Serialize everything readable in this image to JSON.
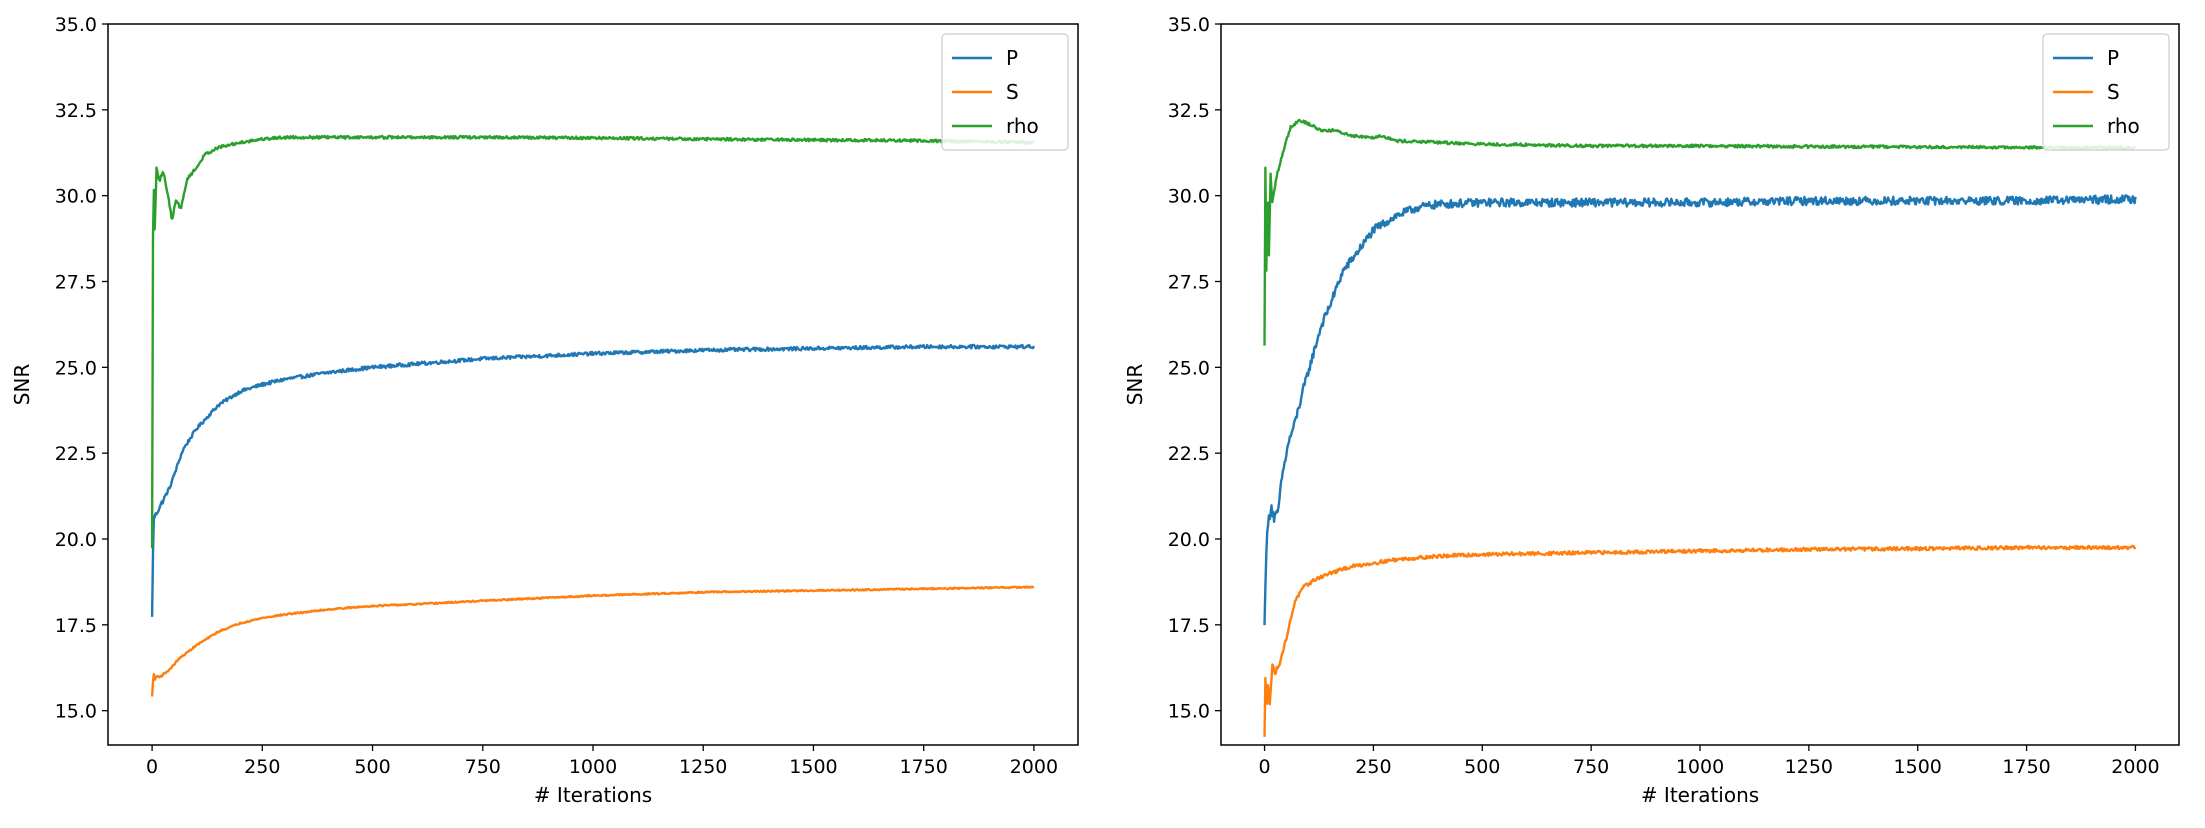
{
  "colors": {
    "P": "#1f77b4",
    "S": "#ff7f0e",
    "rho": "#2ca02c",
    "axes": "#000000",
    "legend_border": "#cccccc"
  },
  "chart_data": [
    {
      "type": "line",
      "title": "",
      "xlabel": "# Iterations",
      "ylabel": "SNR",
      "xlim": [
        -100,
        2100
      ],
      "ylim": [
        14,
        35
      ],
      "xticks": [
        0,
        250,
        500,
        750,
        1000,
        1250,
        1500,
        1750,
        2000
      ],
      "xtick_labels": [
        "0",
        "250",
        "500",
        "750",
        "1000",
        "1250",
        "1500",
        "1750",
        "2000"
      ],
      "yticks": [
        15,
        17.5,
        20,
        22.5,
        25,
        27.5,
        30,
        32.5,
        35
      ],
      "ytick_labels": [
        "15.0",
        "17.5",
        "20.0",
        "22.5",
        "25.0",
        "27.5",
        "30.0",
        "32.5",
        "35.0"
      ],
      "grid": false,
      "legend": "top-right",
      "series": [
        {
          "name": "P",
          "color": "#1f77b4",
          "noise": 0.05,
          "x": [
            0,
            3,
            8,
            20,
            40,
            70,
            100,
            150,
            200,
            250,
            300,
            400,
            500,
            600,
            750,
            1000,
            1250,
            1500,
            1750,
            2000
          ],
          "y": [
            17.7,
            20.6,
            20.7,
            21.0,
            21.5,
            22.6,
            23.2,
            23.9,
            24.3,
            24.5,
            24.65,
            24.85,
            25.0,
            25.1,
            25.25,
            25.4,
            25.5,
            25.55,
            25.6,
            25.6
          ]
        },
        {
          "name": "S",
          "color": "#ff7f0e",
          "noise": 0.02,
          "x": [
            0,
            3,
            6,
            10,
            20,
            40,
            60,
            100,
            150,
            200,
            250,
            300,
            400,
            500,
            600,
            750,
            1000,
            1250,
            1500,
            1750,
            2000
          ],
          "y": [
            15.4,
            16.1,
            15.9,
            16.0,
            16.0,
            16.2,
            16.5,
            16.9,
            17.3,
            17.55,
            17.7,
            17.8,
            17.95,
            18.05,
            18.1,
            18.2,
            18.35,
            18.45,
            18.5,
            18.55,
            18.6
          ]
        },
        {
          "name": "rho",
          "color": "#2ca02c",
          "noise": 0.04,
          "x": [
            0,
            2,
            4,
            6,
            10,
            15,
            25,
            35,
            45,
            55,
            65,
            80,
            100,
            120,
            150,
            200,
            250,
            300,
            500,
            750,
            1000,
            1250,
            1500,
            1750,
            2000
          ],
          "y": [
            19.7,
            28.8,
            30.2,
            29.0,
            30.8,
            30.4,
            30.7,
            30.1,
            29.3,
            29.9,
            29.6,
            30.5,
            30.8,
            31.2,
            31.4,
            31.55,
            31.65,
            31.7,
            31.7,
            31.7,
            31.68,
            31.65,
            31.62,
            31.6,
            31.55
          ]
        }
      ]
    },
    {
      "type": "line",
      "title": "",
      "xlabel": "# Iterations",
      "ylabel": "SNR",
      "xlim": [
        -100,
        2100
      ],
      "ylim": [
        14,
        35
      ],
      "xticks": [
        0,
        250,
        500,
        750,
        1000,
        1250,
        1500,
        1750,
        2000
      ],
      "xtick_labels": [
        "0",
        "250",
        "500",
        "750",
        "1000",
        "1250",
        "1500",
        "1750",
        "2000"
      ],
      "yticks": [
        15,
        17.5,
        20,
        22.5,
        25,
        27.5,
        30,
        32.5,
        35
      ],
      "ytick_labels": [
        "15.0",
        "17.5",
        "20.0",
        "22.5",
        "25.0",
        "27.5",
        "30.0",
        "32.5",
        "35.0"
      ],
      "grid": false,
      "legend": "top-right",
      "series": [
        {
          "name": "P",
          "color": "#1f77b4",
          "noise": 0.12,
          "x": [
            0,
            3,
            8,
            15,
            22,
            30,
            40,
            55,
            70,
            90,
            110,
            130,
            150,
            180,
            210,
            250,
            300,
            350,
            400,
            500,
            750,
            1000,
            1250,
            1500,
            1750,
            2000
          ],
          "y": [
            17.4,
            19.5,
            20.4,
            21.0,
            20.6,
            20.7,
            21.8,
            22.8,
            23.4,
            24.4,
            25.3,
            26.2,
            26.8,
            27.8,
            28.3,
            29.0,
            29.4,
            29.65,
            29.75,
            29.8,
            29.8,
            29.8,
            29.85,
            29.85,
            29.85,
            29.9
          ]
        },
        {
          "name": "S",
          "color": "#ff7f0e",
          "noise": 0.05,
          "x": [
            0,
            2,
            5,
            8,
            12,
            18,
            25,
            35,
            50,
            70,
            90,
            120,
            150,
            200,
            250,
            300,
            400,
            500,
            750,
            1000,
            1250,
            1500,
            1750,
            2000
          ],
          "y": [
            14.2,
            15.9,
            15.0,
            15.8,
            15.2,
            16.3,
            16.1,
            16.4,
            17.1,
            18.2,
            18.6,
            18.85,
            19.0,
            19.2,
            19.3,
            19.4,
            19.5,
            19.55,
            19.6,
            19.65,
            19.7,
            19.72,
            19.75,
            19.75
          ]
        },
        {
          "name": "rho",
          "color": "#2ca02c",
          "noise": 0.04,
          "x": [
            0,
            2,
            4,
            7,
            10,
            14,
            18,
            22,
            28,
            35,
            45,
            60,
            80,
            100,
            130,
            160,
            200,
            250,
            270,
            300,
            400,
            500,
            750,
            1000,
            1250,
            1500,
            1750,
            2000
          ],
          "y": [
            25.6,
            30.8,
            27.8,
            30.5,
            28.3,
            30.6,
            29.8,
            30.1,
            30.6,
            30.9,
            31.4,
            32.0,
            32.2,
            32.1,
            31.9,
            31.9,
            31.75,
            31.7,
            31.75,
            31.6,
            31.55,
            31.5,
            31.45,
            31.45,
            31.43,
            31.42,
            31.4,
            31.4
          ]
        }
      ]
    }
  ]
}
